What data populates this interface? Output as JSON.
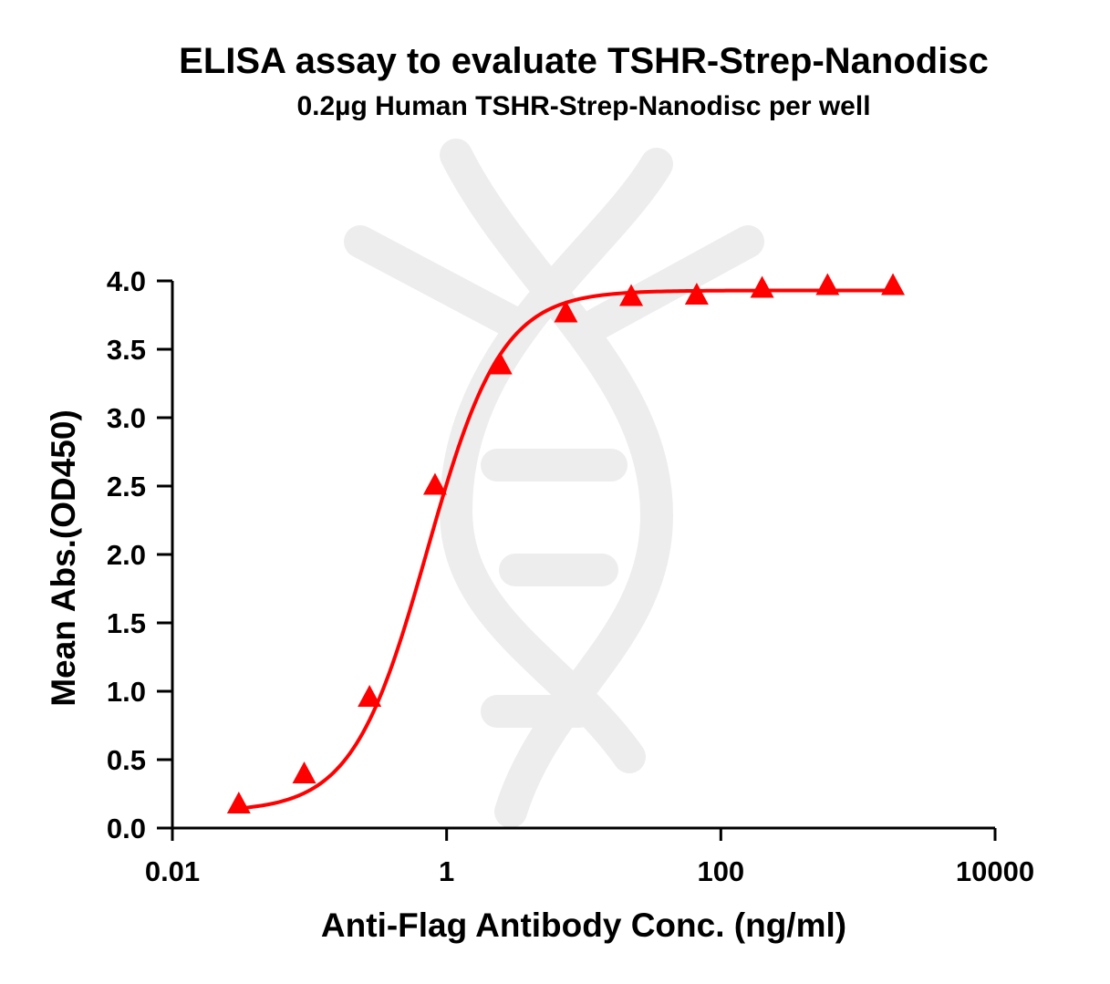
{
  "chart_data": {
    "type": "scatter",
    "title": "ELISA assay to evaluate TSHR-Strep-Nanodisc",
    "subtitle": "0.2µg Human TSHR-Strep-Nanodisc per well",
    "xlabel": "Anti-Flag Antibody Conc. (ng/ml)",
    "ylabel": "Mean Abs.(OD450)",
    "x_scale": "log",
    "xlim": [
      0.01,
      10000
    ],
    "ylim": [
      0,
      4.0
    ],
    "x_ticks": [
      "0.01",
      "1",
      "100",
      "10000"
    ],
    "x_tick_values": [
      0.01,
      1,
      100,
      10000
    ],
    "y_ticks": [
      "0.0",
      "0.5",
      "1.0",
      "1.5",
      "2.0",
      "2.5",
      "3.0",
      "3.5",
      "4.0"
    ],
    "y_tick_values": [
      0,
      0.5,
      1.0,
      1.5,
      2.0,
      2.5,
      3.0,
      3.5,
      4.0
    ],
    "grid": false,
    "legend": "none",
    "color": "#ff0000",
    "marker": "triangle",
    "series": [
      {
        "x": [
          0.0305,
          0.0915,
          0.274,
          0.823,
          2.47,
          7.41,
          22.2,
          66.7,
          200,
          600,
          1800
        ],
        "y": [
          0.18,
          0.4,
          0.96,
          2.51,
          3.39,
          3.77,
          3.89,
          3.9,
          3.95,
          3.97,
          3.97
        ]
      }
    ],
    "fit_curve": {
      "type": "4PL",
      "bottom": 0.12,
      "top": 3.93,
      "ec50": 0.72,
      "hill": 1.6
    }
  }
}
